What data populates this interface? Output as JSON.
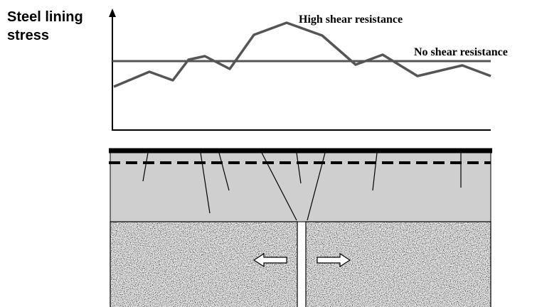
{
  "y_axis_label": [
    "Steel lining",
    "stress"
  ],
  "curves": [
    {
      "label": "High shear resistance"
    },
    {
      "label": "No shear resistance"
    }
  ]
}
